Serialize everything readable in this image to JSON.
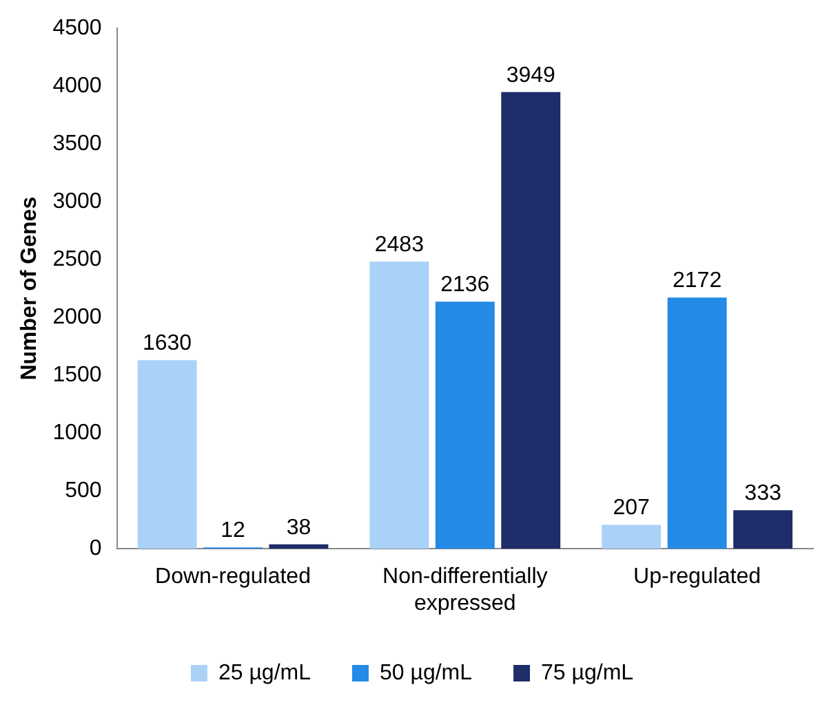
{
  "chart_data": {
    "type": "bar",
    "ylabel": "Number of Genes",
    "categories": [
      "Down-regulated",
      "Non-differentially expressed",
      "Up-regulated"
    ],
    "series": [
      {
        "name": "25 µg/mL",
        "color": "#aad2f7",
        "values": [
          1630,
          2483,
          207
        ]
      },
      {
        "name": "50 µg/mL",
        "color": "#238ae6",
        "values": [
          12,
          2136,
          2172
        ]
      },
      {
        "name": "75 µg/mL",
        "color": "#1f2d6a",
        "values": [
          38,
          3949,
          333
        ]
      }
    ],
    "ylim": [
      0,
      4500
    ],
    "yticks": [
      0,
      500,
      1000,
      1500,
      2000,
      2500,
      3000,
      3500,
      4000,
      4500
    ],
    "grid": false,
    "legend": "bottom",
    "data_labels": true
  }
}
